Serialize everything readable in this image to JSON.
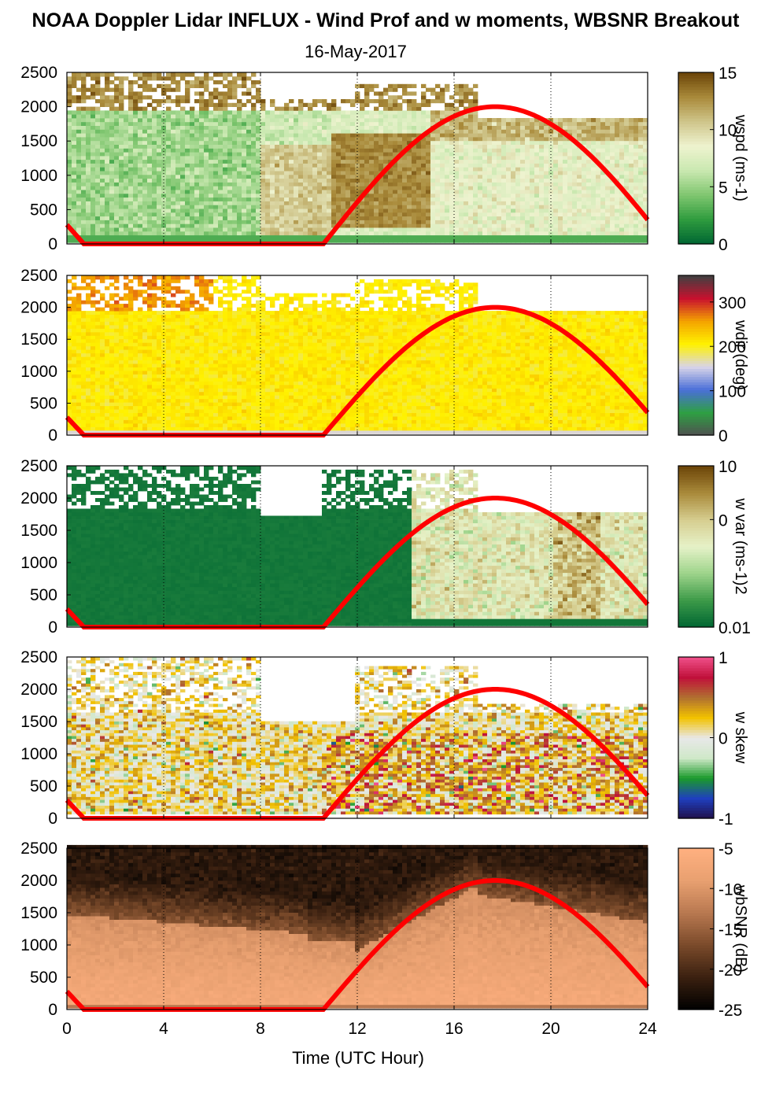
{
  "title": "NOAA Doppler Lidar INFLUX - Wind Prof and w moments, WBSNR Breakout",
  "subtitle": "16-May-2017",
  "chart_data": [
    {
      "type": "heatmap",
      "panel": "wspd",
      "ylim": [
        0,
        2500
      ],
      "xlim": [
        0,
        24
      ],
      "yticks": [
        "0",
        "500",
        "1000",
        "1500",
        "2000",
        "2500"
      ],
      "colorbar": {
        "label": "wspd (ms-1)",
        "ticks": [
          "15",
          "10",
          "5",
          "0"
        ],
        "range": [
          0,
          15
        ]
      },
      "colormap": [
        "#006633",
        "#2e9b3e",
        "#7fc66f",
        "#c9e8b0",
        "#eef3cf",
        "#cfc58a",
        "#a98a3a",
        "#6b4408"
      ],
      "overlay": {
        "name": "solar curve",
        "color": "#ff0000"
      }
    },
    {
      "type": "heatmap",
      "panel": "wdir",
      "ylim": [
        0,
        2500
      ],
      "xlim": [
        0,
        24
      ],
      "yticks": [
        "0",
        "500",
        "1000",
        "1500",
        "2000",
        "2500"
      ],
      "colorbar": {
        "label": "wdir (deg)",
        "ticks": [
          "300",
          "200",
          "100",
          "0"
        ],
        "range": [
          0,
          360
        ]
      },
      "colormap": [
        "#505050",
        "#2ea043",
        "#4a6fd8",
        "#d8d4e8",
        "#fff200",
        "#f4a300",
        "#c8102e",
        "#404040"
      ],
      "overlay": {
        "name": "solar curve",
        "color": "#ff0000"
      }
    },
    {
      "type": "heatmap",
      "panel": "w var",
      "ylim": [
        0,
        2500
      ],
      "xlim": [
        0,
        24
      ],
      "yticks": [
        "0",
        "500",
        "1000",
        "1500",
        "2000",
        "2500"
      ],
      "colorbar": {
        "label": "w var (ms-1)2",
        "ticks": [
          "10",
          "0",
          "0.01"
        ],
        "scale": "log",
        "range": [
          0.01,
          10
        ]
      },
      "colormap": [
        "#006633",
        "#3c9a48",
        "#9dd38a",
        "#e6f2c8",
        "#d6cd8f",
        "#a98a3a",
        "#6b4408"
      ],
      "overlay": {
        "name": "solar curve",
        "color": "#ff0000"
      }
    },
    {
      "type": "heatmap",
      "panel": "w skew",
      "ylim": [
        0,
        2500
      ],
      "xlim": [
        0,
        24
      ],
      "yticks": [
        "0",
        "500",
        "1000",
        "1500",
        "2000",
        "2500"
      ],
      "colorbar": {
        "label": "w skew",
        "ticks": [
          "1",
          "0",
          "-1"
        ],
        "range": [
          -1,
          1
        ]
      },
      "colormap": [
        "#20104a",
        "#1f3fbf",
        "#1a9a2a",
        "#cfe8c8",
        "#e8e8e8",
        "#f2c200",
        "#b07030",
        "#c0103a",
        "#f0508a"
      ],
      "overlay": {
        "name": "solar curve",
        "color": "#ff0000"
      }
    },
    {
      "type": "heatmap",
      "panel": "wbSNR",
      "ylim": [
        0,
        2500
      ],
      "xlim": [
        0,
        24
      ],
      "yticks": [
        "0",
        "500",
        "1000",
        "1500",
        "2000",
        "2500"
      ],
      "xticks": [
        "0",
        "4",
        "8",
        "12",
        "16",
        "20",
        "24"
      ],
      "xlabel": "Time (UTC Hour)",
      "colorbar": {
        "label": "wbSNR (dB)",
        "ticks": [
          "-5",
          "-10",
          "-15",
          "-20",
          "-25"
        ],
        "range": [
          -25,
          -5
        ]
      },
      "colormap": [
        "#000000",
        "#3a2010",
        "#7a4a2a",
        "#b87850",
        "#e8a070",
        "#ffb080"
      ],
      "overlay": {
        "name": "solar curve",
        "color": "#ff0000"
      }
    }
  ]
}
